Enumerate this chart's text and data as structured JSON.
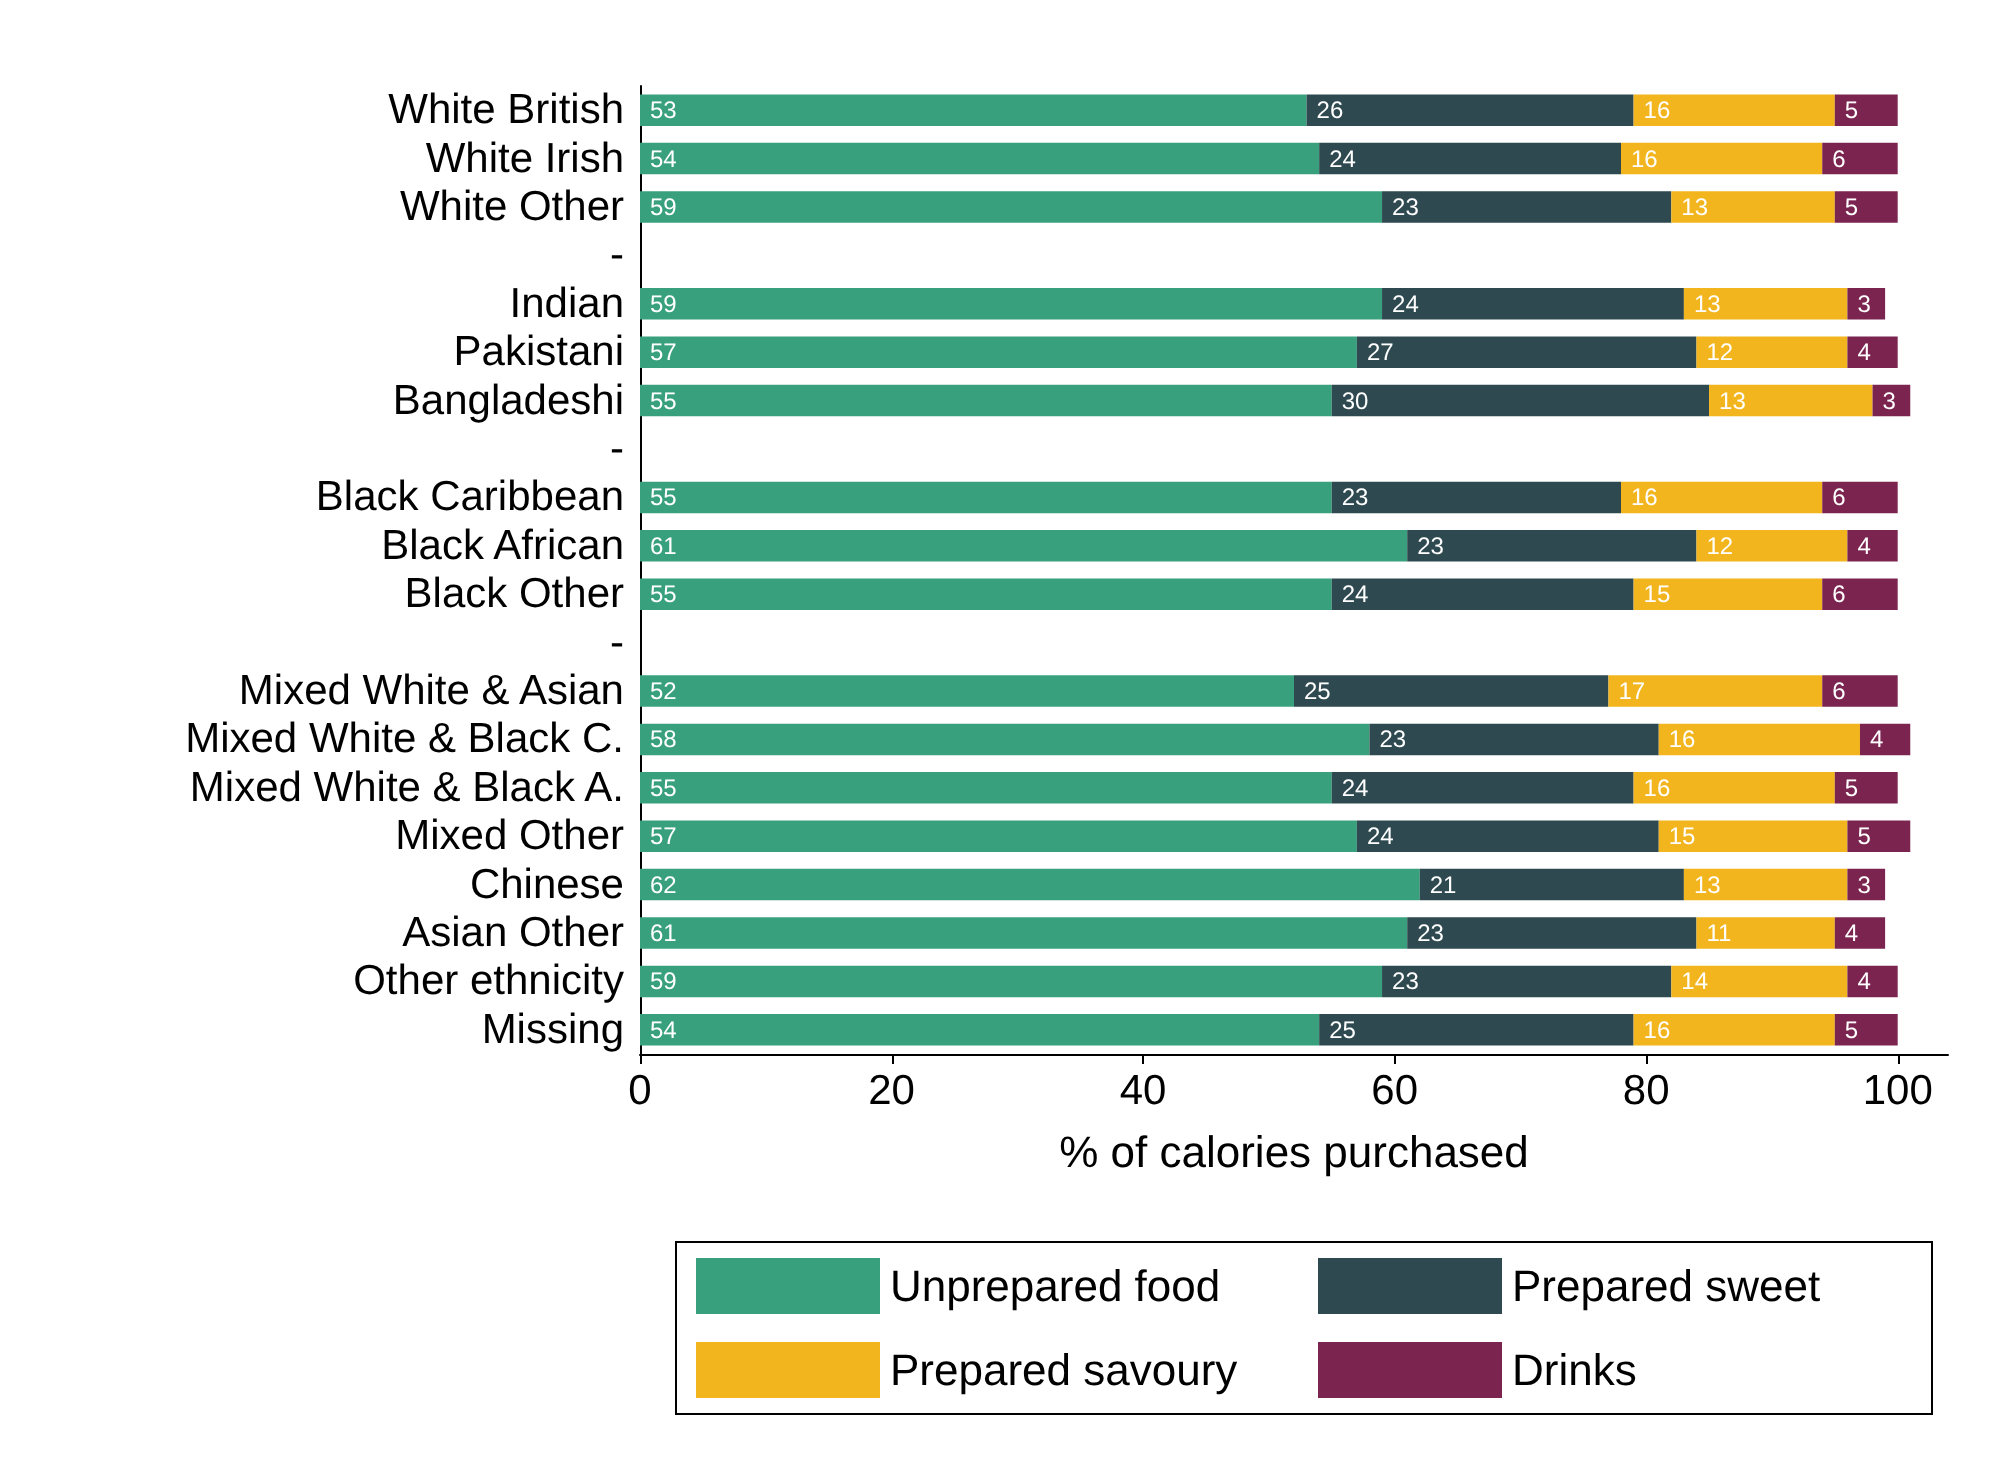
{
  "chart_data": {
    "type": "bar",
    "orientation": "horizontal",
    "stacked": true,
    "data_labels": true,
    "grid": false,
    "legend": "bottom",
    "xlabel": "% of calories purchased",
    "xlim": [
      0,
      104
    ],
    "xticks": [
      0,
      20,
      40,
      60,
      80,
      100
    ],
    "categories": [
      "White British",
      "White Irish",
      "White Other",
      "-",
      "Indian",
      "Pakistani",
      "Bangladeshi",
      "-",
      "Black Caribbean",
      "Black African",
      "Black Other",
      "-",
      "Mixed White & Asian",
      "Mixed White & Black C.",
      "Mixed White & Black A.",
      "Mixed Other",
      "Chinese",
      "Asian Other",
      "Other ethnicity",
      "Missing"
    ],
    "series": [
      {
        "name": "Unprepared food",
        "color": "#38a07d",
        "values": [
          53,
          54,
          59,
          null,
          59,
          57,
          55,
          null,
          55,
          61,
          55,
          null,
          52,
          58,
          55,
          57,
          62,
          61,
          59,
          54
        ]
      },
      {
        "name": "Prepared sweet",
        "color": "#2e4a50",
        "values": [
          26,
          24,
          23,
          null,
          24,
          27,
          30,
          null,
          23,
          23,
          24,
          null,
          25,
          23,
          24,
          24,
          21,
          23,
          23,
          25
        ]
      },
      {
        "name": "Prepared savoury",
        "color": "#f2b51e",
        "values": [
          16,
          16,
          13,
          null,
          13,
          12,
          13,
          null,
          16,
          12,
          15,
          null,
          17,
          16,
          16,
          15,
          13,
          11,
          14,
          16
        ]
      },
      {
        "name": "Drinks",
        "color": "#7b2450",
        "values": [
          5,
          6,
          5,
          null,
          3,
          4,
          3,
          null,
          6,
          4,
          6,
          null,
          6,
          4,
          5,
          5,
          3,
          4,
          4,
          5
        ]
      }
    ]
  }
}
